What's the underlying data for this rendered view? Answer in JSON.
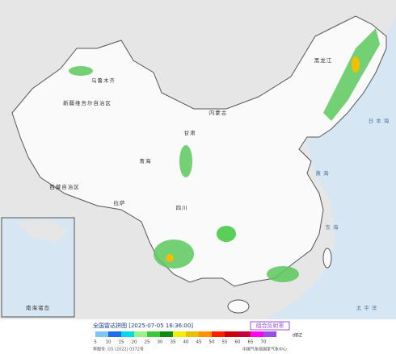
{
  "map": {
    "labels": [
      "新疆维吾尔自治区",
      "西藏自治区",
      "青海",
      "乌鲁木齐",
      "拉萨",
      "四川",
      "甘肃",
      "内蒙古",
      "黑龙江",
      "黄海",
      "东海",
      "太平洋",
      "日本海",
      "南海诸岛"
    ]
  },
  "legend": {
    "title": "全国雷达拼图 [2025-07-05 16:36:00]",
    "product": "组合反射率",
    "unit": "dBZ",
    "values": [
      5,
      10,
      15,
      20,
      25,
      30,
      35,
      40,
      45,
      50,
      55,
      60,
      65,
      70
    ],
    "colors": [
      "#7fc6f2",
      "#1e6eeb",
      "#00d8e8",
      "#9cf08a",
      "#3cc83c",
      "#0e8c0e",
      "#f0f000",
      "#e8c000",
      "#ff9000",
      "#ff2000",
      "#d00000",
      "#c00040",
      "#ff00f0",
      "#9850e0"
    ],
    "footer_left": "审图号: GS (2022) 0372号",
    "footer_right": "中国气象局国家气象中心"
  }
}
